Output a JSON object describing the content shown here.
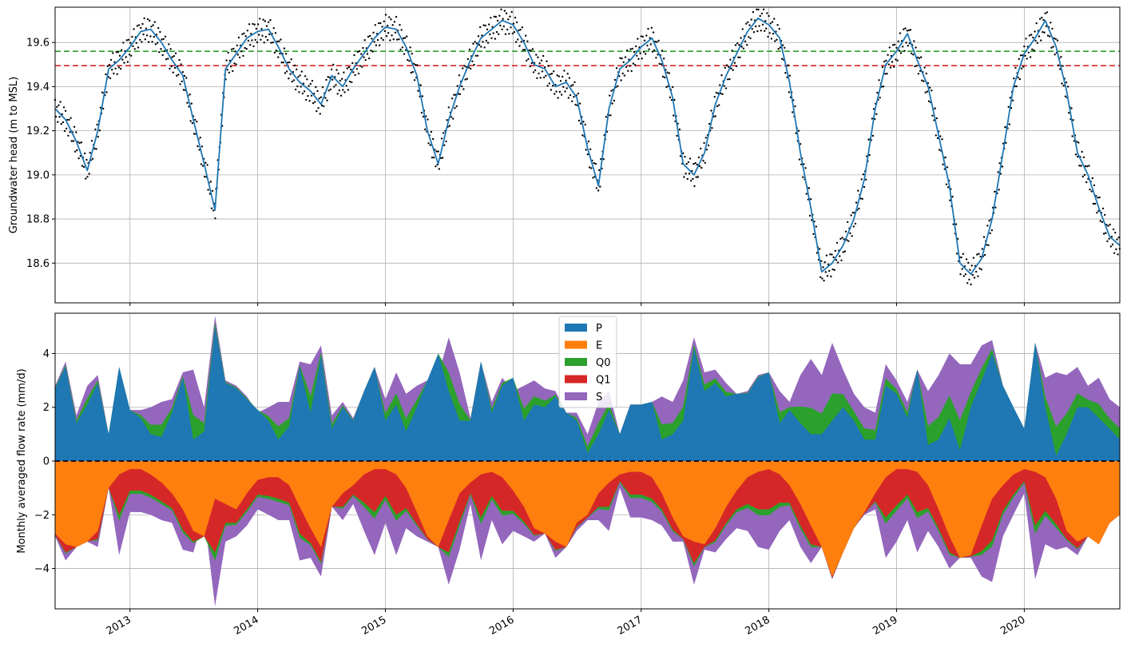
{
  "chart_data": [
    {
      "type": "line",
      "ylabel": "Groundwater head (m to MSL)",
      "xlim": [
        "2012-06-01",
        "2020-09-30"
      ],
      "ylim": [
        18.42,
        19.76
      ],
      "yticks": [
        18.6,
        18.8,
        19.0,
        19.2,
        19.4,
        19.6
      ],
      "ytick_labels": [
        "18.6",
        "18.8",
        "19.0",
        "19.2",
        "19.4",
        "19.6"
      ],
      "grid": true,
      "hlines": [
        {
          "y": 19.56,
          "color": "#2ca02c",
          "style": "dashed"
        },
        {
          "y": 19.495,
          "color": "#d62728",
          "style": "dashed"
        }
      ],
      "series": [
        {
          "kind": "line",
          "color": "#1f77b4",
          "x": [
            "2012-06-01",
            "2012-07-01",
            "2012-08-01",
            "2012-09-01",
            "2012-10-01",
            "2012-11-01",
            "2012-12-01",
            "2013-01-01",
            "2013-02-01",
            "2013-03-01",
            "2013-04-01",
            "2013-05-01",
            "2013-06-01",
            "2013-07-01",
            "2013-08-01",
            "2013-09-01",
            "2013-10-01",
            "2013-11-01",
            "2013-12-01",
            "2014-01-01",
            "2014-02-01",
            "2014-03-01",
            "2014-04-01",
            "2014-05-01",
            "2014-06-01",
            "2014-07-01",
            "2014-08-01",
            "2014-09-01",
            "2014-10-01",
            "2014-11-01",
            "2014-12-01",
            "2015-01-01",
            "2015-02-01",
            "2015-03-01",
            "2015-04-01",
            "2015-05-01",
            "2015-06-01",
            "2015-07-01",
            "2015-08-01",
            "2015-09-01",
            "2015-10-01",
            "2015-11-01",
            "2015-12-01",
            "2016-01-01",
            "2016-02-01",
            "2016-03-01",
            "2016-04-01",
            "2016-05-01",
            "2016-06-01",
            "2016-07-01",
            "2016-08-01",
            "2016-09-01",
            "2016-10-01",
            "2016-11-01",
            "2016-12-01",
            "2017-01-01",
            "2017-02-01",
            "2017-03-01",
            "2017-04-01",
            "2017-05-01",
            "2017-06-01",
            "2017-07-01",
            "2017-08-01",
            "2017-09-01",
            "2017-10-01",
            "2017-11-01",
            "2017-12-01",
            "2018-01-01",
            "2018-02-01",
            "2018-03-01",
            "2018-04-01",
            "2018-05-01",
            "2018-06-01",
            "2018-07-01",
            "2018-08-01",
            "2018-09-01",
            "2018-10-01",
            "2018-11-01",
            "2018-12-01",
            "2019-01-01",
            "2019-02-01",
            "2019-03-01",
            "2019-04-01",
            "2019-05-01",
            "2019-06-01",
            "2019-07-01",
            "2019-08-01",
            "2019-09-01",
            "2019-10-01",
            "2019-11-01",
            "2019-12-01",
            "2020-01-01",
            "2020-02-01",
            "2020-03-01",
            "2020-04-01",
            "2020-05-01",
            "2020-06-01",
            "2020-07-01",
            "2020-08-01",
            "2020-09-01",
            "2020-09-30"
          ],
          "y": [
            19.3,
            19.25,
            19.15,
            19.02,
            19.2,
            19.48,
            19.52,
            19.58,
            19.65,
            19.66,
            19.6,
            19.52,
            19.45,
            19.25,
            19.05,
            18.84,
            19.48,
            19.55,
            19.62,
            19.65,
            19.66,
            19.58,
            19.48,
            19.42,
            19.38,
            19.32,
            19.45,
            19.4,
            19.48,
            19.55,
            19.62,
            19.67,
            19.66,
            19.58,
            19.45,
            19.2,
            19.05,
            19.25,
            19.4,
            19.52,
            19.62,
            19.66,
            19.7,
            19.68,
            19.6,
            19.5,
            19.48,
            19.4,
            19.42,
            19.35,
            19.12,
            18.95,
            19.3,
            19.48,
            19.52,
            19.58,
            19.62,
            19.52,
            19.35,
            19.05,
            19.0,
            19.1,
            19.32,
            19.45,
            19.55,
            19.65,
            19.71,
            19.68,
            19.62,
            19.42,
            19.1,
            18.85,
            18.56,
            18.6,
            18.68,
            18.8,
            18.98,
            19.3,
            19.5,
            19.56,
            19.64,
            19.52,
            19.4,
            19.18,
            18.95,
            18.6,
            18.55,
            18.62,
            18.8,
            19.1,
            19.4,
            19.55,
            19.62,
            19.7,
            19.58,
            19.38,
            19.1,
            19.0,
            18.85,
            18.72,
            18.68
          ]
        },
        {
          "kind": "scatter",
          "color": "#000000",
          "marker_size": 1.2,
          "offsets": [
            0.05,
            -0.04,
            0.02,
            -0.06,
            0.04,
            -0.02,
            0.07,
            -0.05,
            0.01,
            -0.03,
            0.06,
            -0.07
          ]
        }
      ]
    },
    {
      "type": "area",
      "ylabel": "Monthly averaged flow rate (mm/d)",
      "xlim": [
        "2012-06-01",
        "2020-09-30"
      ],
      "ylim": [
        -5.5,
        5.5
      ],
      "yticks": [
        -4,
        -2,
        0,
        2,
        4
      ],
      "ytick_labels": [
        "−4",
        "−2",
        "0",
        "2",
        "4"
      ],
      "xticks": [
        "2013-01-01",
        "2014-01-01",
        "2015-01-01",
        "2016-01-01",
        "2017-01-01",
        "2018-01-01",
        "2019-01-01",
        "2020-01-01"
      ],
      "xtick_labels": [
        "2013",
        "2014",
        "2015",
        "2016",
        "2017",
        "2018",
        "2019",
        "2020"
      ],
      "grid": true,
      "hline": {
        "y": 0,
        "color": "#000000",
        "style": "dashed"
      },
      "legend": {
        "placement": "upper-center",
        "entries": [
          "P",
          "E",
          "Q0",
          "Q1",
          "S"
        ]
      },
      "series": [
        {
          "name": "P",
          "color": "#1f77b4"
        },
        {
          "name": "E",
          "color": "#ff7f0e"
        },
        {
          "name": "Q0",
          "color": "#2ca02c"
        },
        {
          "name": "Q1",
          "color": "#d62728"
        },
        {
          "name": "S",
          "color": "#9467bd"
        }
      ],
      "x": [
        "2012-06-01",
        "2012-07-01",
        "2012-08-01",
        "2012-09-01",
        "2012-10-01",
        "2012-11-01",
        "2012-12-01",
        "2013-01-01",
        "2013-02-01",
        "2013-03-01",
        "2013-04-01",
        "2013-05-01",
        "2013-06-01",
        "2013-07-01",
        "2013-08-01",
        "2013-09-01",
        "2013-10-01",
        "2013-11-01",
        "2013-12-01",
        "2014-01-01",
        "2014-02-01",
        "2014-03-01",
        "2014-04-01",
        "2014-05-01",
        "2014-06-01",
        "2014-07-01",
        "2014-08-01",
        "2014-09-01",
        "2014-10-01",
        "2014-11-01",
        "2014-12-01",
        "2015-01-01",
        "2015-02-01",
        "2015-03-01",
        "2015-04-01",
        "2015-05-01",
        "2015-06-01",
        "2015-07-01",
        "2015-08-01",
        "2015-09-01",
        "2015-10-01",
        "2015-11-01",
        "2015-12-01",
        "2016-01-01",
        "2016-02-01",
        "2016-03-01",
        "2016-04-01",
        "2016-05-01",
        "2016-06-01",
        "2016-07-01",
        "2016-08-01",
        "2016-09-01",
        "2016-10-01",
        "2016-11-01",
        "2016-12-01",
        "2017-01-01",
        "2017-02-01",
        "2017-03-01",
        "2017-04-01",
        "2017-05-01",
        "2017-06-01",
        "2017-07-01",
        "2017-08-01",
        "2017-09-01",
        "2017-10-01",
        "2017-11-01",
        "2017-12-01",
        "2018-01-01",
        "2018-02-01",
        "2018-03-01",
        "2018-04-01",
        "2018-05-01",
        "2018-06-01",
        "2018-07-01",
        "2018-08-01",
        "2018-09-01",
        "2018-10-01",
        "2018-11-01",
        "2018-12-01",
        "2019-01-01",
        "2019-02-01",
        "2019-03-01",
        "2019-04-01",
        "2019-05-01",
        "2019-06-01",
        "2019-07-01",
        "2019-08-01",
        "2019-09-01",
        "2019-10-01",
        "2019-11-01",
        "2019-12-01",
        "2020-01-01",
        "2020-02-01",
        "2020-03-01",
        "2020-04-01",
        "2020-05-01",
        "2020-06-01",
        "2020-07-01",
        "2020-08-01",
        "2020-09-01",
        "2020-09-30"
      ],
      "pos_totals": [
        2.8,
        3.7,
        1.7,
        2.8,
        3.2,
        1.0,
        3.5,
        1.9,
        1.9,
        2.0,
        2.2,
        2.3,
        3.3,
        3.4,
        2.0,
        5.4,
        3.0,
        2.8,
        2.4,
        1.8,
        2.0,
        2.2,
        2.2,
        3.7,
        3.6,
        4.3,
        1.7,
        2.2,
        1.6,
        2.6,
        3.5,
        2.3,
        3.3,
        2.5,
        2.8,
        3.0,
        3.2,
        4.6,
        3.3,
        1.6,
        3.7,
        2.2,
        3.1,
        2.6,
        2.8,
        3.0,
        2.7,
        2.6,
        1.8,
        1.8,
        1.0,
        2.2,
        2.6,
        1.0,
        2.1,
        2.1,
        2.2,
        2.4,
        2.2,
        3.0,
        4.6,
        3.3,
        3.4,
        2.9,
        2.5,
        2.6,
        3.2,
        3.3,
        2.6,
        2.2,
        3.2,
        3.8,
        3.2,
        4.4,
        3.4,
        2.5,
        2.0,
        1.8,
        3.6,
        3.0,
        2.2,
        3.4,
        2.6,
        3.2,
        4.0,
        3.6,
        3.6,
        4.3,
        4.5,
        2.8,
        2.0,
        1.2,
        4.4,
        3.1,
        3.3,
        3.2,
        3.5,
        2.8,
        3.1,
        2.3,
        2.0
      ],
      "P_values": [
        2.7,
        3.5,
        1.4,
        2.1,
        2.9,
        1.0,
        3.5,
        1.9,
        1.6,
        1.0,
        0.9,
        1.8,
        3.1,
        0.8,
        1.1,
        5.0,
        2.9,
        2.7,
        2.3,
        1.9,
        1.5,
        0.8,
        1.3,
        3.5,
        1.8,
        3.9,
        1.2,
        2.0,
        1.5,
        2.6,
        3.5,
        1.5,
        2.1,
        1.1,
        2.0,
        3.0,
        4.0,
        2.6,
        1.5,
        1.5,
        3.7,
        1.8,
        2.8,
        3.1,
        1.5,
        2.1,
        2.0,
        2.4,
        1.8,
        1.5,
        0.3,
        1.0,
        1.9,
        1.0,
        2.1,
        2.1,
        2.2,
        0.8,
        1.0,
        1.5,
        4.2,
        2.6,
        2.9,
        2.4,
        2.5,
        2.5,
        3.1,
        3.3,
        1.4,
        1.9,
        1.4,
        1.0,
        1.0,
        1.5,
        2.0,
        1.5,
        0.8,
        0.8,
        2.8,
        2.5,
        1.6,
        3.4,
        0.6,
        0.8,
        1.6,
        0.4,
        2.0,
        3.0,
        4.0,
        2.8,
        2.0,
        1.2,
        4.4,
        2.0,
        0.2,
        1.0,
        2.0,
        2.0,
        1.6,
        1.2,
        0.8
      ],
      "neg_totals": [
        -2.8,
        -3.7,
        -3.2,
        -3.0,
        -3.2,
        -1.0,
        -3.5,
        -1.9,
        -1.9,
        -2.0,
        -2.2,
        -2.3,
        -3.3,
        -3.4,
        -2.0,
        -5.4,
        -3.0,
        -2.8,
        -2.4,
        -1.8,
        -2.0,
        -2.2,
        -2.2,
        -3.7,
        -3.6,
        -4.3,
        -1.7,
        -2.2,
        -1.6,
        -2.6,
        -3.5,
        -2.3,
        -3.5,
        -2.5,
        -2.8,
        -3.0,
        -3.2,
        -4.6,
        -3.3,
        -1.6,
        -3.7,
        -2.2,
        -3.1,
        -2.6,
        -2.8,
        -3.0,
        -2.7,
        -3.6,
        -3.2,
        -2.6,
        -2.2,
        -2.2,
        -2.6,
        -1.0,
        -2.1,
        -2.1,
        -2.2,
        -2.4,
        -3.0,
        -3.0,
        -4.6,
        -3.3,
        -3.4,
        -2.9,
        -2.5,
        -2.6,
        -3.2,
        -3.3,
        -2.6,
        -2.2,
        -3.2,
        -3.8,
        -3.2,
        -4.4,
        -3.4,
        -2.5,
        -2.0,
        -1.8,
        -3.6,
        -3.0,
        -2.2,
        -3.4,
        -2.6,
        -3.2,
        -4.0,
        -3.6,
        -3.6,
        -4.3,
        -4.5,
        -2.8,
        -2.0,
        -1.2,
        -4.4,
        -3.1,
        -3.3,
        -3.2,
        -3.5,
        -2.8,
        -3.1,
        -2.3,
        -2.0
      ],
      "E_values": [
        -2.7,
        -3.1,
        -3.2,
        -3.0,
        -2.6,
        -1.0,
        -0.5,
        -0.3,
        -0.3,
        -0.5,
        -0.8,
        -1.2,
        -1.8,
        -2.6,
        -2.8,
        -1.4,
        -1.6,
        -1.8,
        -1.2,
        -0.7,
        -0.6,
        -0.6,
        -0.9,
        -1.7,
        -2.5,
        -3.2,
        -1.7,
        -1.2,
        -0.9,
        -0.5,
        -0.3,
        -0.3,
        -0.5,
        -1.0,
        -1.9,
        -2.8,
        -3.2,
        -2.2,
        -1.2,
        -0.8,
        -0.5,
        -0.4,
        -0.6,
        -1.1,
        -1.7,
        -2.5,
        -2.7,
        -3.0,
        -3.2,
        -2.3,
        -2.0,
        -1.2,
        -0.8,
        -0.5,
        -0.4,
        -0.4,
        -0.6,
        -1.2,
        -2.1,
        -2.8,
        -3.0,
        -3.1,
        -2.5,
        -1.7,
        -1.1,
        -0.6,
        -0.4,
        -0.3,
        -0.5,
        -0.9,
        -1.6,
        -2.4,
        -3.2,
        -4.3,
        -3.4,
        -2.5,
        -1.9,
        -1.2,
        -0.6,
        -0.3,
        -0.3,
        -0.4,
        -0.9,
        -1.8,
        -2.8,
        -3.6,
        -3.5,
        -2.4,
        -1.4,
        -0.9,
        -0.5,
        -0.3,
        -0.4,
        -0.6,
        -1.4,
        -2.6,
        -3.0,
        -2.8,
        -3.1,
        -2.3,
        -2.0
      ]
    }
  ]
}
